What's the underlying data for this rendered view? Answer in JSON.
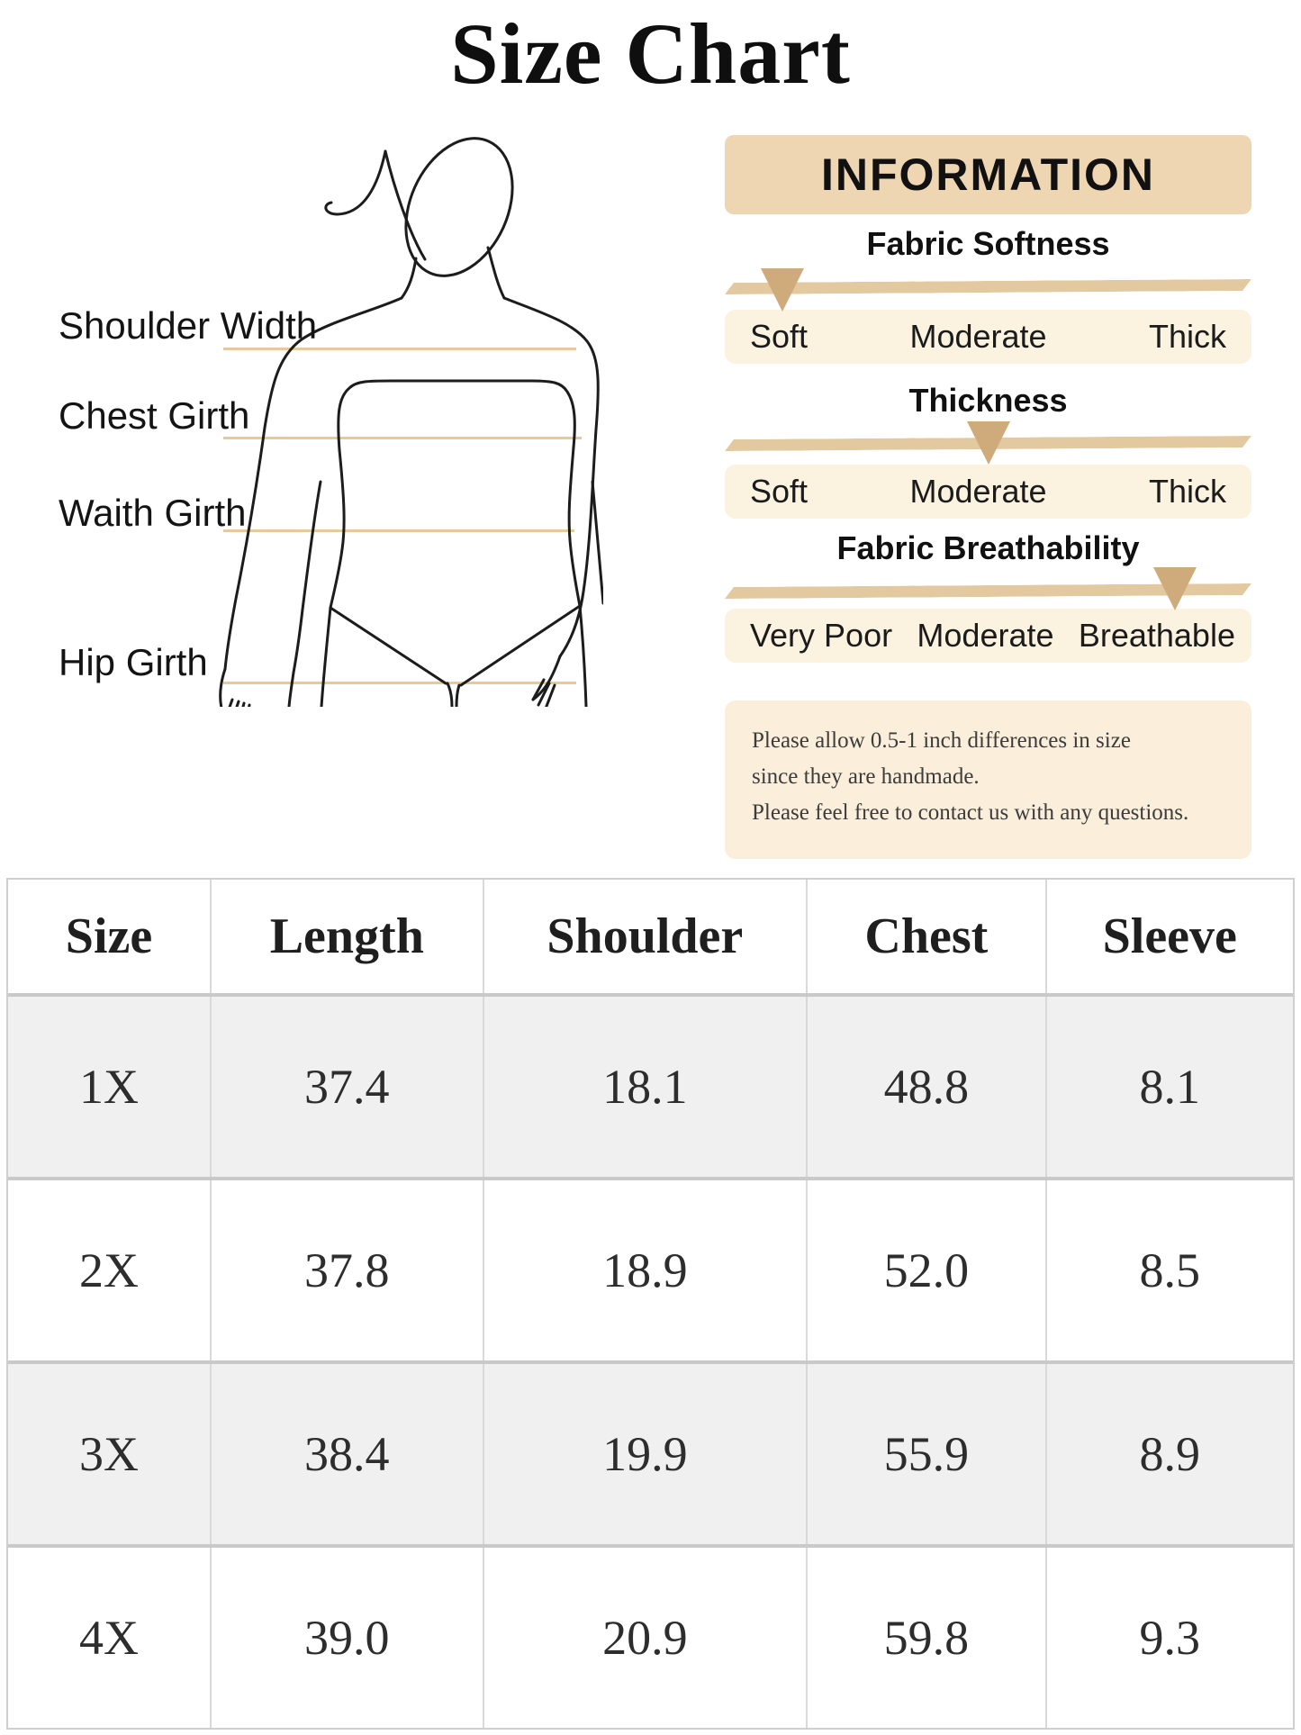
{
  "title": "Size Chart",
  "diagram": {
    "labels": [
      {
        "text": "Shoulder Width"
      },
      {
        "text": "Chest Girth"
      },
      {
        "text": "Waith Girth"
      },
      {
        "text": "Hip Girth"
      }
    ]
  },
  "info_panel": {
    "header": "INFORMATION",
    "sections": [
      {
        "title": "Fabric Softness",
        "labels": [
          "Soft",
          "Moderate",
          "Thick"
        ],
        "marker_level": "Soft",
        "marker_pct": 11
      },
      {
        "title": "Thickness",
        "labels": [
          "Soft",
          "Moderate",
          "Thick"
        ],
        "marker_level": "Moderate",
        "marker_pct": 50
      },
      {
        "title": "Fabric Breathability",
        "labels": [
          "Very Poor",
          "Moderate",
          "Breathable"
        ],
        "marker_level": "Breathable",
        "marker_pct": 85.5
      }
    ],
    "note_lines": [
      "Please allow 0.5-1 inch differences in size",
      "since they are handmade.",
      "Please feel free to contact us with any questions."
    ]
  },
  "size_table": {
    "columns": [
      "Size",
      "Length",
      "Shoulder",
      "Chest",
      "Sleeve"
    ],
    "rows": [
      [
        "1X",
        "37.4",
        "18.1",
        "48.8",
        "8.1"
      ],
      [
        "2X",
        "37.8",
        "18.9",
        "52.0",
        "8.5"
      ],
      [
        "3X",
        "38.4",
        "19.9",
        "55.9",
        "8.9"
      ],
      [
        "4X",
        "39.0",
        "20.9",
        "59.8",
        "9.3"
      ]
    ]
  },
  "colors": {
    "accent_tan": "#efd6b3",
    "bar_tan": "#e3c9a0",
    "marker_tan": "#cfab7c",
    "strip_cream": "#fbf2e0",
    "note_cream": "#fbeeda",
    "line_tan": "#e7c9a0",
    "row_gray": "#f0f0f0",
    "border_gray": "#c9c9c9"
  }
}
